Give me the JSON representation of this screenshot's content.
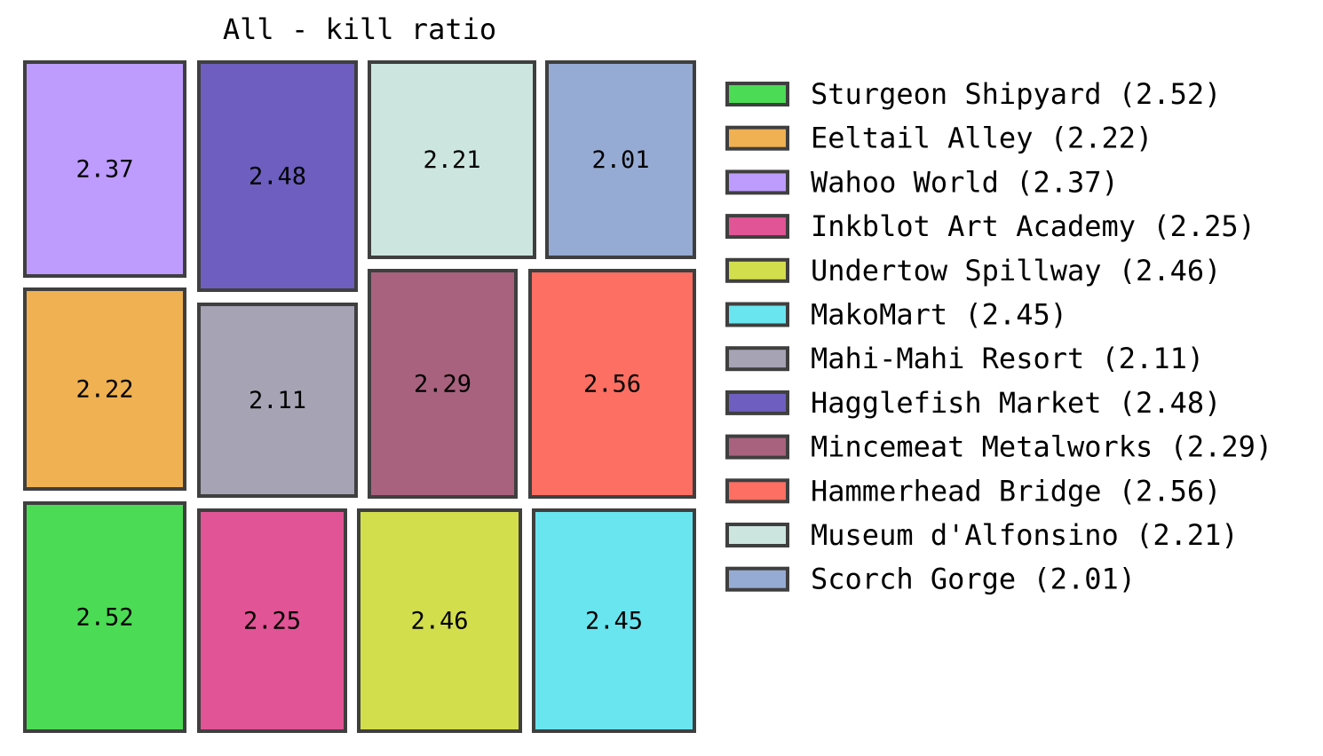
{
  "chart_data": {
    "type": "treemap",
    "title": "All - kill ratio",
    "items": [
      {
        "name": "Sturgeon Shipyard",
        "value": 2.52,
        "color": "#4cdb54"
      },
      {
        "name": "Eeltail Alley",
        "value": 2.22,
        "color": "#efb152"
      },
      {
        "name": "Wahoo World",
        "value": 2.37,
        "color": "#bd9cfd"
      },
      {
        "name": "Inkblot Art Academy",
        "value": 2.25,
        "color": "#e15495"
      },
      {
        "name": "Undertow Spillway",
        "value": 2.46,
        "color": "#d3de4c"
      },
      {
        "name": "MakoMart",
        "value": 2.45,
        "color": "#69e5f0"
      },
      {
        "name": "Mahi-Mahi Resort",
        "value": 2.11,
        "color": "#a5a3b4"
      },
      {
        "name": "Hagglefish Market",
        "value": 2.48,
        "color": "#6d5ec0"
      },
      {
        "name": "Mincemeat Metalworks",
        "value": 2.29,
        "color": "#a8627e"
      },
      {
        "name": "Hammerhead Bridge",
        "value": 2.56,
        "color": "#fd6f62"
      },
      {
        "name": "Museum d'Alfonsino",
        "value": 2.21,
        "color": "#cce6df"
      },
      {
        "name": "Scorch Gorge",
        "value": 2.01,
        "color": "#96abd4"
      }
    ],
    "legend_position": "right",
    "edge_color": "#3f3f3f"
  }
}
